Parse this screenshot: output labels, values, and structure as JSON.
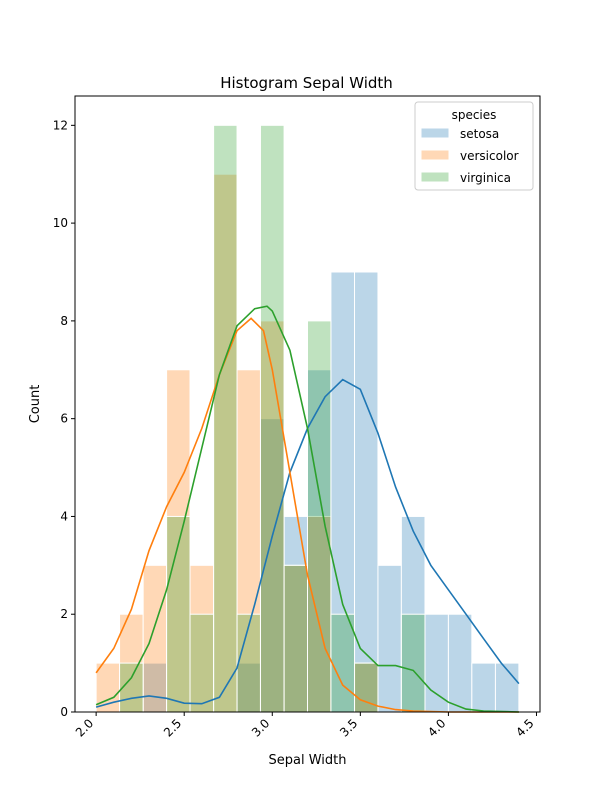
{
  "chart_data": {
    "type": "bar",
    "title": "Histogram Sepal Width",
    "xlabel": "Sepal Width",
    "ylabel": "Count",
    "xlim": [
      1.88,
      4.52
    ],
    "ylim": [
      0,
      12.6
    ],
    "xticks": [
      2.0,
      2.5,
      3.0,
      3.5,
      4.0,
      4.5
    ],
    "xtick_labels": [
      "2.0",
      "2.5",
      "3.0",
      "3.5",
      "4.0",
      "4.5"
    ],
    "yticks": [
      0,
      2,
      4,
      6,
      8,
      10,
      12
    ],
    "ytick_labels": [
      "0",
      "2",
      "4",
      "6",
      "8",
      "10",
      "12"
    ],
    "xtick_rotation": 45,
    "grid": false,
    "legend": {
      "title": "species",
      "placement": "top-right",
      "entries": [
        "setosa",
        "versicolor",
        "virginica"
      ]
    },
    "bin_edges": [
      2.0,
      2.133,
      2.267,
      2.4,
      2.533,
      2.667,
      2.8,
      2.933,
      3.067,
      3.2,
      3.333,
      3.467,
      3.6,
      3.733,
      3.867,
      4.0,
      4.133,
      4.267,
      4.4
    ],
    "series": [
      {
        "name": "setosa",
        "color": "#1f77b4",
        "counts": [
          0,
          0,
          1,
          0,
          0,
          0,
          1,
          6,
          4,
          7,
          9,
          9,
          3,
          4,
          2,
          2,
          1,
          1
        ],
        "kde": [
          [
            2.0,
            0.1
          ],
          [
            2.1,
            0.2
          ],
          [
            2.2,
            0.28
          ],
          [
            2.3,
            0.33
          ],
          [
            2.4,
            0.28
          ],
          [
            2.5,
            0.18
          ],
          [
            2.6,
            0.17
          ],
          [
            2.7,
            0.3
          ],
          [
            2.8,
            0.9
          ],
          [
            2.9,
            2.2
          ],
          [
            3.0,
            3.6
          ],
          [
            3.1,
            4.9
          ],
          [
            3.2,
            5.8
          ],
          [
            3.3,
            6.45
          ],
          [
            3.4,
            6.8
          ],
          [
            3.5,
            6.6
          ],
          [
            3.6,
            5.7
          ],
          [
            3.7,
            4.6
          ],
          [
            3.8,
            3.7
          ],
          [
            3.9,
            3.0
          ],
          [
            4.0,
            2.5
          ],
          [
            4.1,
            2.0
          ],
          [
            4.2,
            1.5
          ],
          [
            4.3,
            1.0
          ],
          [
            4.4,
            0.58
          ]
        ]
      },
      {
        "name": "versicolor",
        "color": "#ff7f0e",
        "counts": [
          1,
          2,
          3,
          7,
          3,
          11,
          7,
          8,
          3,
          4,
          0,
          1,
          0,
          0,
          0,
          0,
          0,
          0
        ],
        "kde": [
          [
            2.0,
            0.8
          ],
          [
            2.1,
            1.3
          ],
          [
            2.2,
            2.1
          ],
          [
            2.3,
            3.3
          ],
          [
            2.4,
            4.2
          ],
          [
            2.5,
            4.9
          ],
          [
            2.6,
            5.8
          ],
          [
            2.7,
            6.9
          ],
          [
            2.8,
            7.8
          ],
          [
            2.88,
            8.05
          ],
          [
            2.95,
            7.8
          ],
          [
            3.0,
            7.0
          ],
          [
            3.1,
            4.9
          ],
          [
            3.2,
            2.8
          ],
          [
            3.3,
            1.3
          ],
          [
            3.4,
            0.55
          ],
          [
            3.5,
            0.25
          ],
          [
            3.6,
            0.12
          ],
          [
            3.7,
            0.05
          ],
          [
            3.8,
            0.02
          ],
          [
            4.0,
            0.0
          ],
          [
            4.4,
            0.0
          ]
        ]
      },
      {
        "name": "virginica",
        "color": "#2ca02c",
        "counts": [
          0,
          1,
          0,
          4,
          2,
          12,
          2,
          12,
          3,
          8,
          2,
          1,
          0,
          2,
          0,
          0,
          0,
          0
        ],
        "kde": [
          [
            2.0,
            0.15
          ],
          [
            2.1,
            0.3
          ],
          [
            2.2,
            0.7
          ],
          [
            2.3,
            1.4
          ],
          [
            2.4,
            2.5
          ],
          [
            2.5,
            3.9
          ],
          [
            2.6,
            5.4
          ],
          [
            2.7,
            6.9
          ],
          [
            2.8,
            7.9
          ],
          [
            2.9,
            8.25
          ],
          [
            2.97,
            8.3
          ],
          [
            3.0,
            8.2
          ],
          [
            3.1,
            7.4
          ],
          [
            3.2,
            5.8
          ],
          [
            3.3,
            3.8
          ],
          [
            3.4,
            2.2
          ],
          [
            3.5,
            1.3
          ],
          [
            3.6,
            0.95
          ],
          [
            3.7,
            0.95
          ],
          [
            3.8,
            0.85
          ],
          [
            3.9,
            0.45
          ],
          [
            4.0,
            0.2
          ],
          [
            4.1,
            0.06
          ],
          [
            4.2,
            0.02
          ],
          [
            4.4,
            0.0
          ]
        ]
      }
    ]
  }
}
